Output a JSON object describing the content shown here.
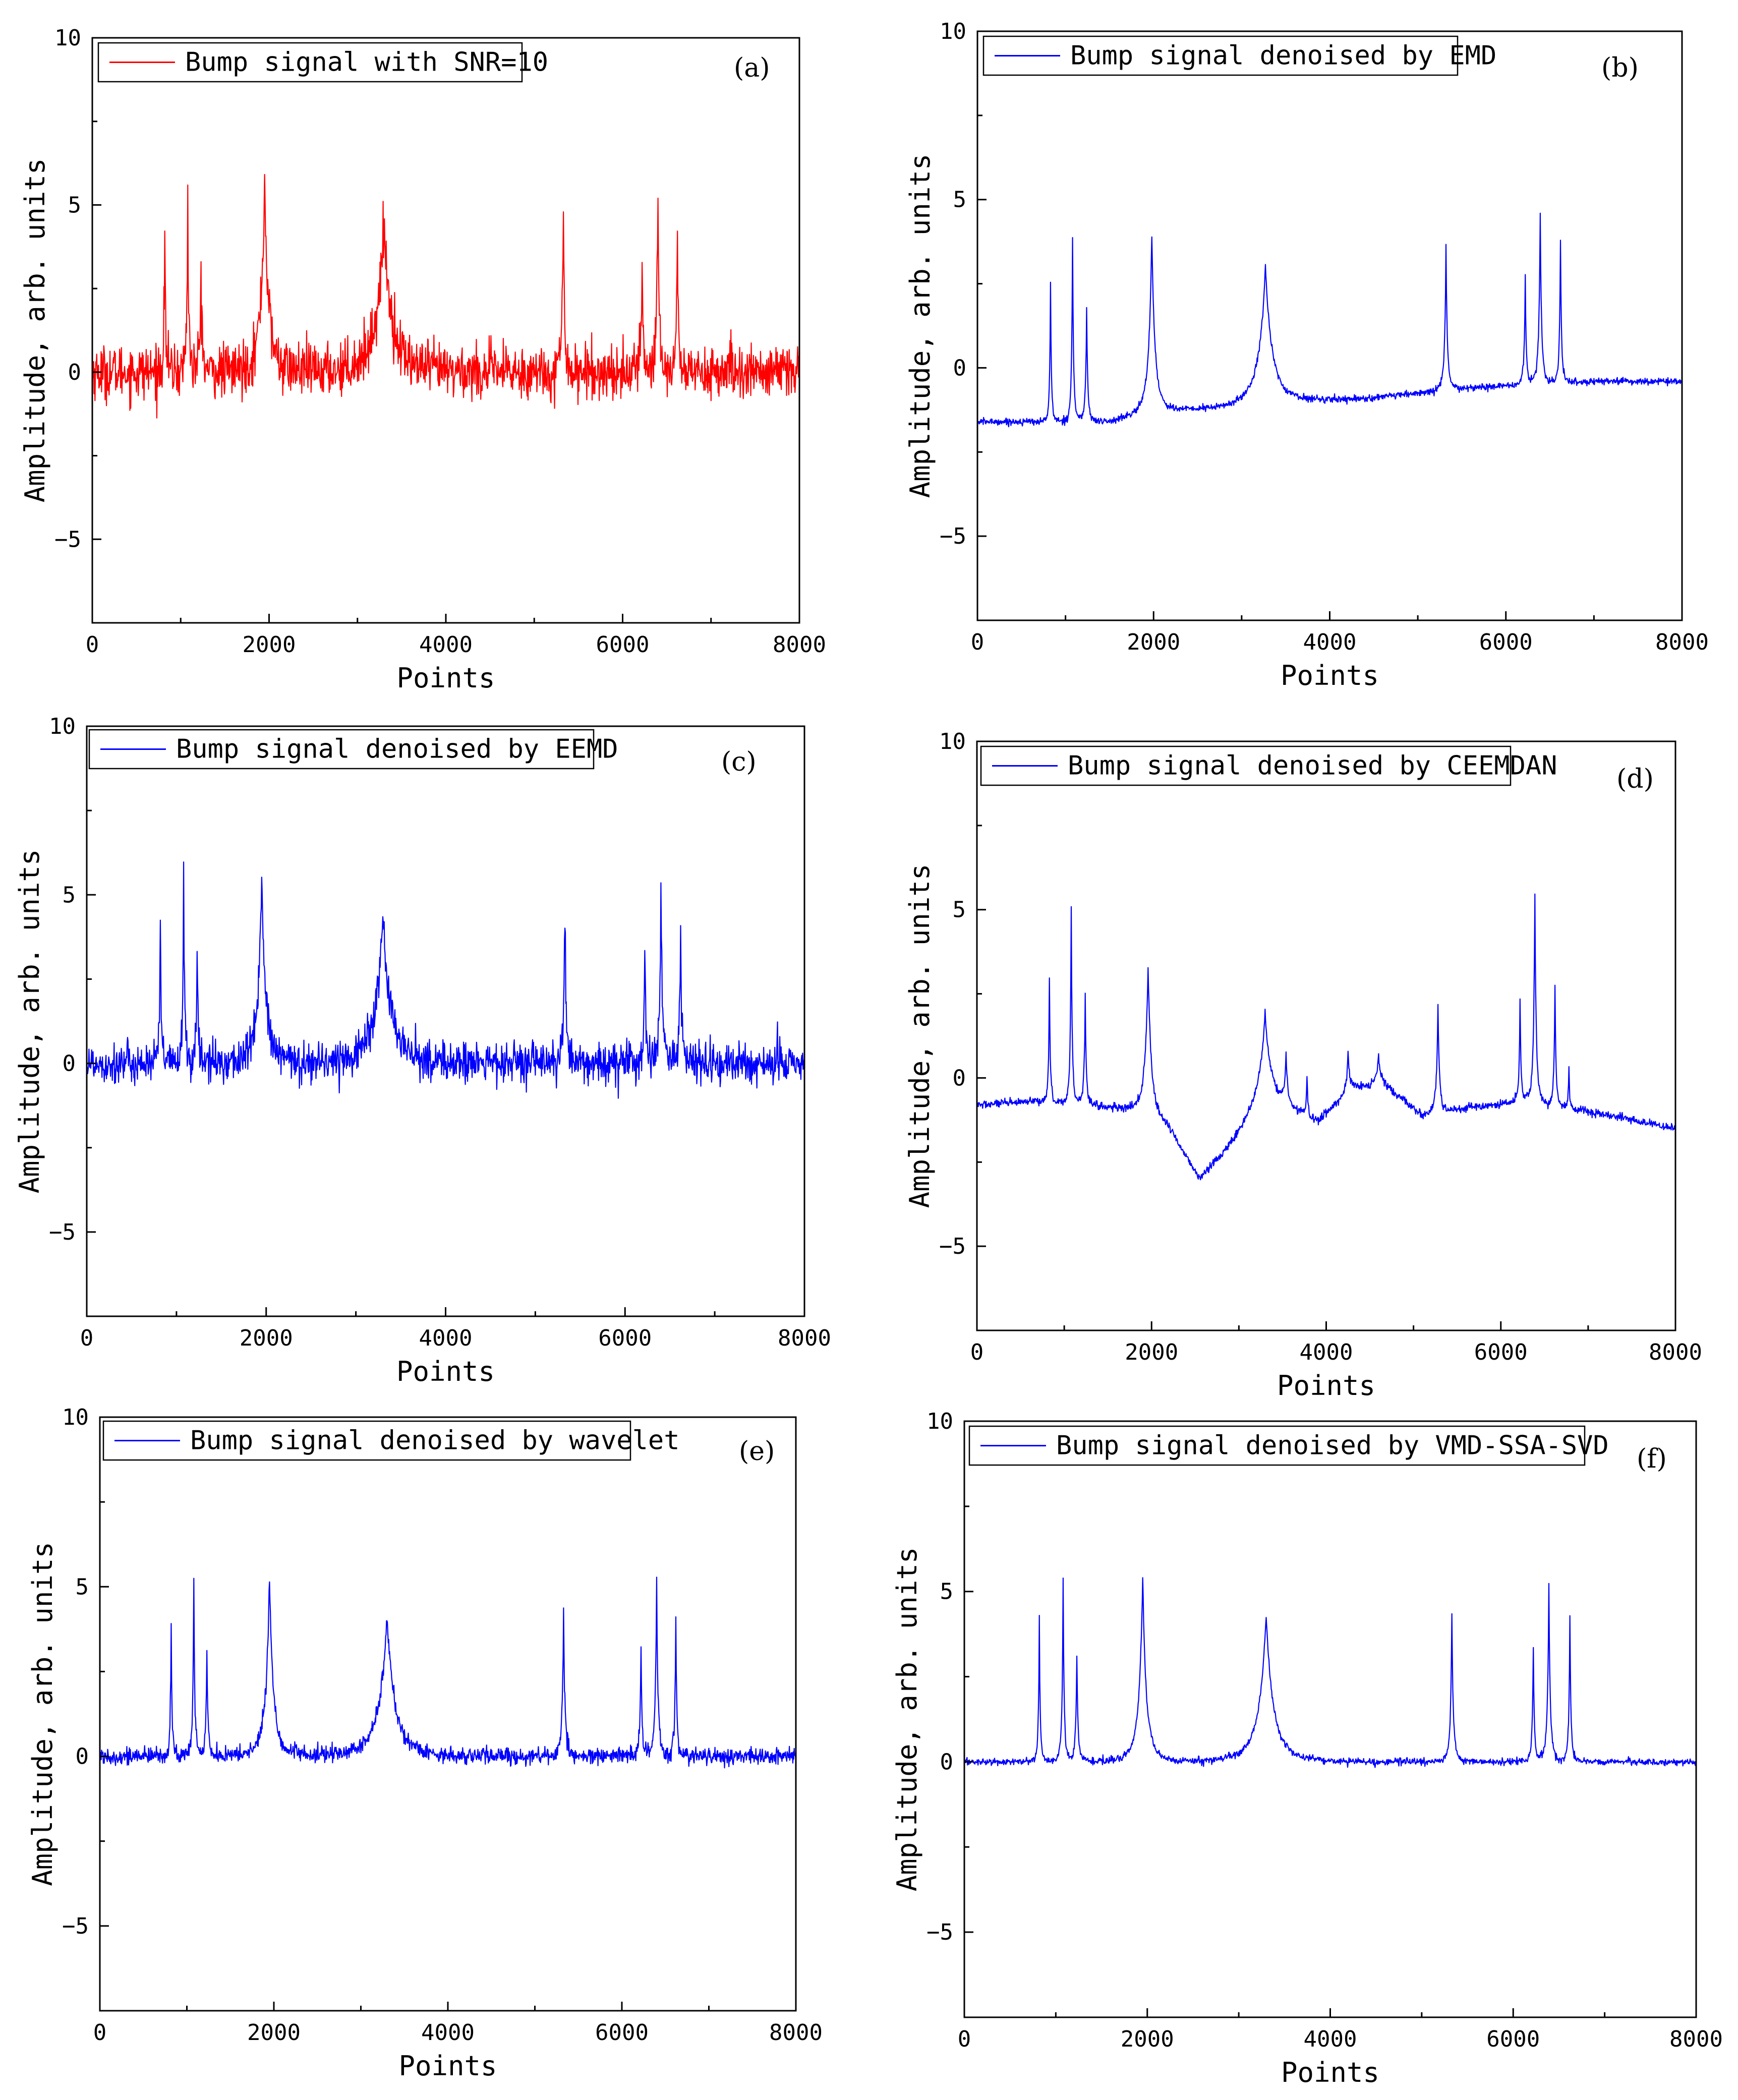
{
  "chart_data": [
    {
      "id": "a",
      "type": "line",
      "panel_label": "(a)",
      "legend": "Bump signal with SNR=10",
      "line_color": "#ff0000",
      "xlabel": "Points",
      "ylabel": "Amplitude, arb. units",
      "xlim": [
        0,
        8000
      ],
      "ylim": [
        -7.5,
        10
      ],
      "xticks": [
        0,
        2000,
        4000,
        6000,
        8000
      ],
      "yticks": [
        -5,
        0,
        5,
        10
      ],
      "noise": 0.4,
      "baseline": [
        [
          0,
          0
        ],
        [
          8000,
          0
        ]
      ],
      "bumps": [
        [
          820,
          4.3,
          35
        ],
        [
          1080,
          5.3,
          40
        ],
        [
          1230,
          3.1,
          45
        ],
        [
          1950,
          5.7,
          160
        ],
        [
          3300,
          4.4,
          330
        ],
        [
          5330,
          4.6,
          55
        ],
        [
          6220,
          3.7,
          40
        ],
        [
          6400,
          5.4,
          55
        ],
        [
          6620,
          4.4,
          40
        ]
      ]
    },
    {
      "id": "b",
      "type": "line",
      "panel_label": "(b)",
      "legend": "Bump signal denoised by EMD",
      "line_color": "#0000ff",
      "xlabel": "Points",
      "ylabel": "Amplitude, arb. units",
      "xlim": [
        0,
        8000
      ],
      "ylim": [
        -7.5,
        10
      ],
      "xticks": [
        0,
        2000,
        4000,
        6000,
        8000
      ],
      "yticks": [
        -5,
        0,
        5,
        10
      ],
      "noise": 0.05,
      "baseline": [
        [
          0,
          -1.6
        ],
        [
          700,
          -1.6
        ],
        [
          1500,
          -1.6
        ],
        [
          2000,
          -1.3
        ],
        [
          2800,
          -1.2
        ],
        [
          3600,
          -1.0
        ],
        [
          4500,
          -0.9
        ],
        [
          5200,
          -0.7
        ],
        [
          5600,
          -0.6
        ],
        [
          6200,
          -0.5
        ],
        [
          7000,
          -0.4
        ],
        [
          8000,
          -0.4
        ]
      ],
      "bumps": [
        [
          830,
          4.1,
          35
        ],
        [
          1080,
          5.4,
          40
        ],
        [
          1240,
          3.3,
          45
        ],
        [
          1980,
          5.3,
          130
        ],
        [
          3270,
          4.1,
          290
        ],
        [
          5320,
          4.3,
          55
        ],
        [
          6220,
          3.2,
          40
        ],
        [
          6390,
          5.1,
          55
        ],
        [
          6620,
          4.3,
          40
        ]
      ]
    },
    {
      "id": "c",
      "type": "line",
      "panel_label": "(c)",
      "legend": "Bump signal denoised by EEMD",
      "line_color": "#0000ff",
      "xlabel": "Points",
      "ylabel": "Amplitude, arb. units",
      "xlim": [
        0,
        8000
      ],
      "ylim": [
        -7.5,
        10
      ],
      "xticks": [
        0,
        2000,
        4000,
        6000,
        8000
      ],
      "yticks": [
        -5,
        0,
        5,
        10
      ],
      "noise": 0.3,
      "baseline": [
        [
          0,
          0
        ],
        [
          8000,
          0
        ]
      ],
      "bumps": [
        [
          820,
          4.2,
          35
        ],
        [
          1080,
          5.3,
          40
        ],
        [
          1230,
          3.1,
          45
        ],
        [
          1950,
          5.5,
          160
        ],
        [
          3300,
          4.3,
          330
        ],
        [
          5330,
          4.4,
          55
        ],
        [
          6220,
          3.6,
          40
        ],
        [
          6400,
          5.3,
          55
        ],
        [
          6620,
          4.3,
          40
        ]
      ]
    },
    {
      "id": "d",
      "type": "line",
      "panel_label": "(d)",
      "legend": "Bump signal denoised by CEEMDAN",
      "line_color": "#0000ff",
      "xlabel": "Points",
      "ylabel": "Amplitude, arb. units",
      "xlim": [
        0,
        8000
      ],
      "ylim": [
        -7.5,
        10
      ],
      "xticks": [
        0,
        2000,
        4000,
        6000,
        8000
      ],
      "yticks": [
        -5,
        0,
        5,
        10
      ],
      "noise": 0.06,
      "baseline": [
        [
          0,
          -0.8
        ],
        [
          700,
          -0.7
        ],
        [
          1300,
          -0.8
        ],
        [
          1800,
          -1.0
        ],
        [
          2200,
          -1.5
        ],
        [
          2550,
          -3.0
        ],
        [
          2900,
          -2.0
        ],
        [
          3300,
          -0.6
        ],
        [
          3900,
          -1.3
        ],
        [
          4300,
          -0.3
        ],
        [
          4650,
          -0.2
        ],
        [
          5100,
          -1.1
        ],
        [
          5600,
          -0.9
        ],
        [
          6300,
          -0.7
        ],
        [
          7000,
          -1.0
        ],
        [
          8000,
          -1.5
        ]
      ],
      "bumps": [
        [
          830,
          3.8,
          35
        ],
        [
          1080,
          5.8,
          40
        ],
        [
          1240,
          3.2,
          45
        ],
        [
          1960,
          4.5,
          140
        ],
        [
          3300,
          2.5,
          250
        ],
        [
          3540,
          1.5,
          60
        ],
        [
          3780,
          1.2,
          40
        ],
        [
          4250,
          1.2,
          70
        ],
        [
          4600,
          0.9,
          90
        ],
        [
          5280,
          3.2,
          60
        ],
        [
          6220,
          3.0,
          40
        ],
        [
          6390,
          6.2,
          55
        ],
        [
          6620,
          3.6,
          40
        ],
        [
          6780,
          1.2,
          30
        ]
      ]
    },
    {
      "id": "e",
      "type": "line",
      "panel_label": "(e)",
      "legend": "Bump signal denoised by wavelet",
      "line_color": "#0000ff",
      "xlabel": "Points",
      "ylabel": "Amplitude, arb. units",
      "xlim": [
        0,
        8000
      ],
      "ylim": [
        -7.5,
        10
      ],
      "xticks": [
        0,
        2000,
        4000,
        6000,
        8000
      ],
      "yticks": [
        -5,
        0,
        5,
        10
      ],
      "noise": 0.12,
      "baseline": [
        [
          0,
          0
        ],
        [
          8000,
          0
        ]
      ],
      "bumps": [
        [
          820,
          3.9,
          35
        ],
        [
          1080,
          5.1,
          40
        ],
        [
          1230,
          3.1,
          45
        ],
        [
          1950,
          5.3,
          160
        ],
        [
          3300,
          4.2,
          330
        ],
        [
          5330,
          4.3,
          55
        ],
        [
          6220,
          3.3,
          40
        ],
        [
          6400,
          5.2,
          55
        ],
        [
          6620,
          4.2,
          40
        ]
      ]
    },
    {
      "id": "f",
      "type": "line",
      "panel_label": "(f)",
      "legend": "Bump signal denoised by VMD-SSA-SVD",
      "line_color": "#0000ff",
      "xlabel": "Points",
      "ylabel": "Amplitude, arb. units",
      "xlim": [
        0,
        8000
      ],
      "ylim": [
        -7.5,
        10
      ],
      "xticks": [
        0,
        2000,
        4000,
        6000,
        8000
      ],
      "yticks": [
        -5,
        0,
        5,
        10
      ],
      "noise": 0.05,
      "baseline": [
        [
          0,
          0
        ],
        [
          8000,
          0
        ]
      ],
      "bumps": [
        [
          820,
          4.2,
          35
        ],
        [
          1080,
          5.3,
          40
        ],
        [
          1230,
          3.1,
          45
        ],
        [
          1950,
          5.4,
          150
        ],
        [
          3300,
          4.3,
          300
        ],
        [
          5330,
          4.3,
          55
        ],
        [
          6220,
          3.3,
          40
        ],
        [
          6390,
          5.2,
          55
        ],
        [
          6620,
          4.3,
          40
        ]
      ]
    }
  ]
}
